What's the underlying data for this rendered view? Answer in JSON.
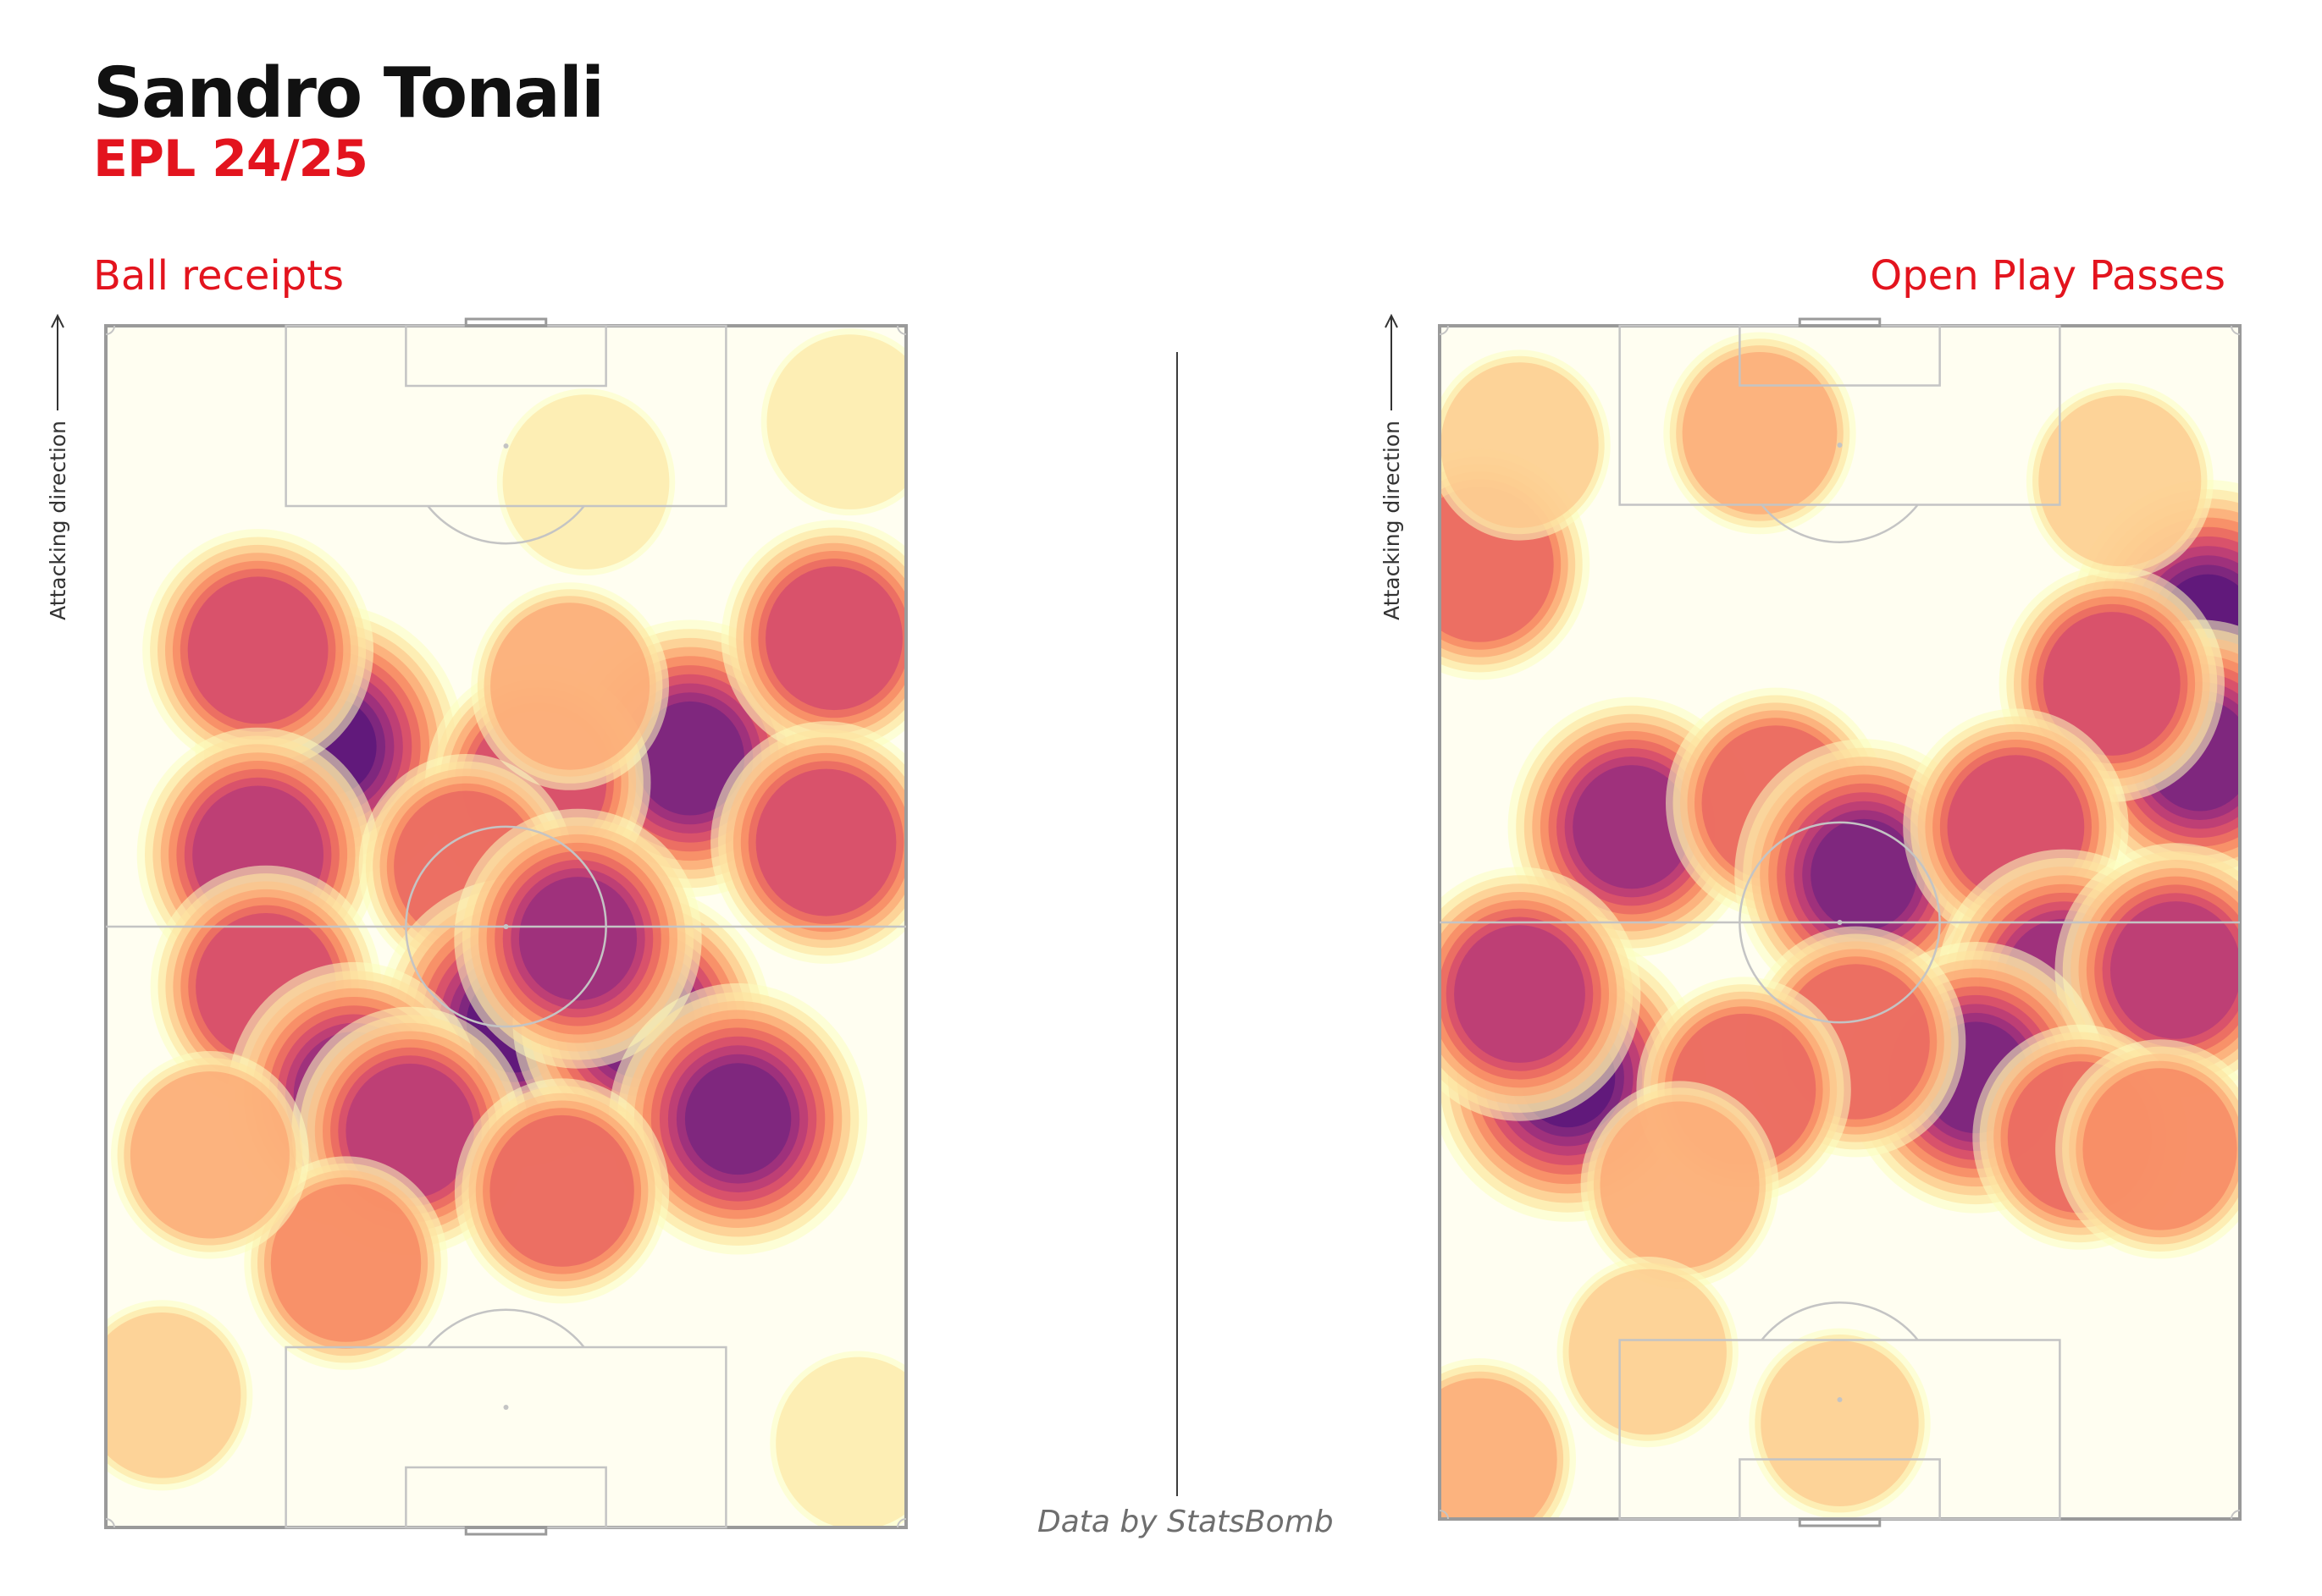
{
  "title": "Sandro Tonali",
  "subtitle": "EPL 24/25",
  "credit": "Data by StatsBomb",
  "direction_label": "Attacking direction",
  "colors": {
    "title": "#111111",
    "accent": "#e3141e",
    "pitch_lines": "#c4c4c4",
    "pitch_border": "#9a9a9a",
    "colormap": [
      "#fcfdbf",
      "#fde3a0",
      "#fec287",
      "#fc9f6e",
      "#f57d5c",
      "#e55a5f",
      "#cd4071",
      "#ac337c",
      "#8c2981",
      "#6c2280",
      "#4f1279"
    ]
  },
  "chart_data": [
    {
      "type": "heatmap",
      "title": "Ball receipts",
      "subtitle": "",
      "xlabel": "",
      "ylabel": "Attacking direction",
      "colorscale": "magma-reversed",
      "grid": false,
      "legend": "none",
      "hotspots": [
        {
          "x": 28,
          "y": 65,
          "intensity": 0.95
        },
        {
          "x": 73,
          "y": 64,
          "intensity": 0.9
        },
        {
          "x": 19,
          "y": 73,
          "intensity": 0.6
        },
        {
          "x": 91,
          "y": 74,
          "intensity": 0.55
        },
        {
          "x": 19,
          "y": 56,
          "intensity": 0.7
        },
        {
          "x": 90,
          "y": 57,
          "intensity": 0.6
        },
        {
          "x": 54,
          "y": 62,
          "intensity": 0.55
        },
        {
          "x": 45,
          "y": 55,
          "intensity": 0.45
        },
        {
          "x": 51,
          "y": 42,
          "intensity": 1.0
        },
        {
          "x": 67,
          "y": 42,
          "intensity": 0.85
        },
        {
          "x": 59,
          "y": 49,
          "intensity": 0.75
        },
        {
          "x": 20,
          "y": 45,
          "intensity": 0.6
        },
        {
          "x": 31,
          "y": 36,
          "intensity": 0.8
        },
        {
          "x": 79,
          "y": 34,
          "intensity": 0.85
        },
        {
          "x": 38,
          "y": 33,
          "intensity": 0.65
        },
        {
          "x": 57,
          "y": 28,
          "intensity": 0.45
        },
        {
          "x": 30,
          "y": 22,
          "intensity": 0.35
        },
        {
          "x": 13,
          "y": 31,
          "intensity": 0.3
        },
        {
          "x": 58,
          "y": 70,
          "intensity": 0.3
        },
        {
          "x": 7,
          "y": 11,
          "intensity": 0.15
        },
        {
          "x": 93,
          "y": 92,
          "intensity": 0.12
        },
        {
          "x": 60,
          "y": 87,
          "intensity": 0.12
        },
        {
          "x": 94,
          "y": 7,
          "intensity": 0.1
        }
      ]
    },
    {
      "type": "heatmap",
      "title": "Open Play Passes",
      "subtitle": "",
      "xlabel": "",
      "ylabel": "Attacking direction",
      "colorscale": "magma-reversed",
      "grid": false,
      "legend": "none",
      "hotspots": [
        {
          "x": 96,
          "y": 75,
          "intensity": 1.0
        },
        {
          "x": 95,
          "y": 64,
          "intensity": 0.85
        },
        {
          "x": 84,
          "y": 70,
          "intensity": 0.55
        },
        {
          "x": 5,
          "y": 80,
          "intensity": 0.5
        },
        {
          "x": 24,
          "y": 58,
          "intensity": 0.75
        },
        {
          "x": 42,
          "y": 60,
          "intensity": 0.5
        },
        {
          "x": 53,
          "y": 54,
          "intensity": 0.85
        },
        {
          "x": 72,
          "y": 58,
          "intensity": 0.55
        },
        {
          "x": 78,
          "y": 45,
          "intensity": 0.8
        },
        {
          "x": 92,
          "y": 46,
          "intensity": 0.7
        },
        {
          "x": 67,
          "y": 37,
          "intensity": 0.85
        },
        {
          "x": 16,
          "y": 37,
          "intensity": 1.0
        },
        {
          "x": 10,
          "y": 44,
          "intensity": 0.7
        },
        {
          "x": 52,
          "y": 40,
          "intensity": 0.5
        },
        {
          "x": 38,
          "y": 36,
          "intensity": 0.45
        },
        {
          "x": 80,
          "y": 32,
          "intensity": 0.45
        },
        {
          "x": 90,
          "y": 31,
          "intensity": 0.4
        },
        {
          "x": 30,
          "y": 28,
          "intensity": 0.3
        },
        {
          "x": 5,
          "y": 5,
          "intensity": 0.25
        },
        {
          "x": 50,
          "y": 8,
          "intensity": 0.15
        },
        {
          "x": 40,
          "y": 91,
          "intensity": 0.25
        },
        {
          "x": 85,
          "y": 87,
          "intensity": 0.2
        },
        {
          "x": 10,
          "y": 90,
          "intensity": 0.15
        },
        {
          "x": 26,
          "y": 14,
          "intensity": 0.15
        }
      ]
    }
  ]
}
